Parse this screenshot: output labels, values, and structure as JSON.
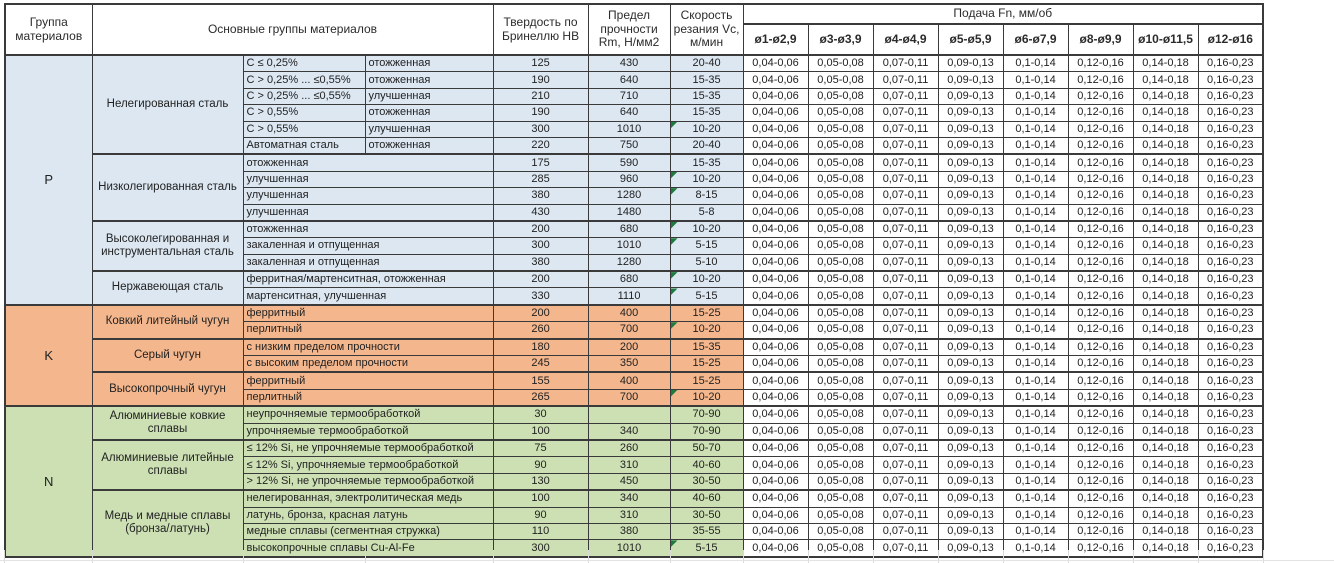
{
  "header": {
    "col_group": "Группа материалов",
    "col_main": "Основные группы материалов",
    "col_hb": "Твердость по Бринеллю HB",
    "col_rm": "Предел прочности Rm, Н/мм2",
    "col_vc": "Скорость резания Vc, м/мин",
    "col_feed": "Подача Fn, мм/об",
    "feed_cols": [
      "ø1-ø2,9",
      "ø3-ø3,9",
      "ø4-ø4,9",
      "ø5-ø5,9",
      "ø6-ø7,9",
      "ø8-ø9,9",
      "ø10-ø11,5",
      "ø12-ø16"
    ]
  },
  "feed_values": [
    "0,04-0,06",
    "0,05-0,08",
    "0,07-0,11",
    "0,09-0,13",
    "0,1-0,14",
    "0,12-0,16",
    "0,14-0,18",
    "0,16-0,23"
  ],
  "colors": {
    "P": "#dce7f2",
    "K": "#f4b68c",
    "N": "#cde0b4",
    "flag": "#1e7a3e"
  },
  "groups": [
    {
      "code": "P",
      "color_key": "P",
      "subgroups": [
        {
          "name": "Нелегированная сталь",
          "rows": [
            {
              "c1": "C ≤ 0,25%",
              "c2": "отожженная",
              "hb": "125",
              "rm": "430",
              "vc": "20-40",
              "flag": false
            },
            {
              "c1": "C > 0,25% ... ≤0,55%",
              "c2": "отожженная",
              "hb": "190",
              "rm": "640",
              "vc": "15-35",
              "flag": false
            },
            {
              "c1": "C > 0,25% ... ≤0,55%",
              "c2": "улучшенная",
              "hb": "210",
              "rm": "710",
              "vc": "15-35",
              "flag": false
            },
            {
              "c1": "C > 0,55%",
              "c2": "отожженная",
              "hb": "190",
              "rm": "640",
              "vc": "15-35",
              "flag": false
            },
            {
              "c1": "C > 0,55%",
              "c2": "улучшенная",
              "hb": "300",
              "rm": "1010",
              "vc": "10-20",
              "flag": true
            },
            {
              "c1": "Автоматная сталь",
              "c2": "отожженная",
              "hb": "220",
              "rm": "750",
              "vc": "20-40",
              "flag": false
            }
          ]
        },
        {
          "name": "Низколегированная сталь",
          "rows": [
            {
              "c1": "отожженная",
              "c2": null,
              "hb": "175",
              "rm": "590",
              "vc": "15-35",
              "flag": false
            },
            {
              "c1": "улучшенная",
              "c2": null,
              "hb": "285",
              "rm": "960",
              "vc": "10-20",
              "flag": true
            },
            {
              "c1": "улучшенная",
              "c2": null,
              "hb": "380",
              "rm": "1280",
              "vc": "8-15",
              "flag": true
            },
            {
              "c1": "улучшенная",
              "c2": null,
              "hb": "430",
              "rm": "1480",
              "vc": "5-8",
              "flag": false
            }
          ]
        },
        {
          "name": "Высоколегированная и инструментальная сталь",
          "rows": [
            {
              "c1": "отожженная",
              "c2": null,
              "hb": "200",
              "rm": "680",
              "vc": "10-20",
              "flag": true
            },
            {
              "c1": "закаленная и отпущенная",
              "c2": null,
              "hb": "300",
              "rm": "1010",
              "vc": "5-15",
              "flag": true
            },
            {
              "c1": "закаленная и отпущенная",
              "c2": null,
              "hb": "380",
              "rm": "1280",
              "vc": "5-10",
              "flag": false
            }
          ]
        },
        {
          "name": "Нержавеющая сталь",
          "rows": [
            {
              "c1": "ферритная/мартенситная, отожженная",
              "c2": null,
              "hb": "200",
              "rm": "680",
              "vc": "10-20",
              "flag": true
            },
            {
              "c1": "мартенситная, улучшенная",
              "c2": null,
              "hb": "330",
              "rm": "1110",
              "vc": "5-15",
              "flag": true
            }
          ]
        }
      ]
    },
    {
      "code": "K",
      "color_key": "K",
      "subgroups": [
        {
          "name": "Ковкий литейный чугун",
          "rows": [
            {
              "c1": "ферритный",
              "c2": null,
              "hb": "200",
              "rm": "400",
              "vc": "15-25",
              "flag": false
            },
            {
              "c1": "перлитный",
              "c2": null,
              "hb": "260",
              "rm": "700",
              "vc": "10-20",
              "flag": true
            }
          ]
        },
        {
          "name": "Серый чугун",
          "rows": [
            {
              "c1": "с низким пределом прочности",
              "c2": null,
              "hb": "180",
              "rm": "200",
              "vc": "15-35",
              "flag": false
            },
            {
              "c1": "с высоким пределом прочности",
              "c2": null,
              "hb": "245",
              "rm": "350",
              "vc": "15-25",
              "flag": false
            }
          ]
        },
        {
          "name": "Высокопрочный чугун",
          "rows": [
            {
              "c1": "ферритный",
              "c2": null,
              "hb": "155",
              "rm": "400",
              "vc": "15-25",
              "flag": false
            },
            {
              "c1": "перлитный",
              "c2": null,
              "hb": "265",
              "rm": "700",
              "vc": "10-20",
              "flag": true
            }
          ]
        }
      ]
    },
    {
      "code": "N",
      "color_key": "N",
      "subgroups": [
        {
          "name": "Алюминиевые ковкие сплавы",
          "rows": [
            {
              "c1": "неупрочняемые термообработкой",
              "c2": null,
              "hb": "30",
              "rm": "",
              "vc": "70-90",
              "flag": false
            },
            {
              "c1": "упрочняемые термообработкой",
              "c2": null,
              "hb": "100",
              "rm": "340",
              "vc": "70-90",
              "flag": false
            }
          ]
        },
        {
          "name": "Алюминиевые литейные сплавы",
          "rows": [
            {
              "c1": "≤ 12% Si, не упрочняемые термообработкой",
              "c2": null,
              "hb": "75",
              "rm": "260",
              "vc": "50-70",
              "flag": false
            },
            {
              "c1": "≤ 12% Si, упрочняемые термообработкой",
              "c2": null,
              "hb": "90",
              "rm": "310",
              "vc": "40-60",
              "flag": false
            },
            {
              "c1": "> 12% Si, не упрочняемые термообработкой",
              "c2": null,
              "hb": "130",
              "rm": "450",
              "vc": "30-50",
              "flag": false
            }
          ]
        },
        {
          "name": "Медь и медные сплавы (бронза/латунь)",
          "rows": [
            {
              "c1": "нелегированная, электролитическая медь",
              "c2": null,
              "hb": "100",
              "rm": "340",
              "vc": "40-60",
              "flag": false
            },
            {
              "c1": "латунь, бронза, красная латунь",
              "c2": null,
              "hb": "90",
              "rm": "310",
              "vc": "30-50",
              "flag": false
            },
            {
              "c1": "медные сплавы (сегментная стружка)",
              "c2": null,
              "hb": "110",
              "rm": "380",
              "vc": "35-55",
              "flag": false
            },
            {
              "c1": "высокопрочные сплавы Cu-Al-Fe",
              "c2": null,
              "hb": "300",
              "rm": "1010",
              "vc": "5-15",
              "flag": true
            }
          ]
        }
      ]
    }
  ]
}
